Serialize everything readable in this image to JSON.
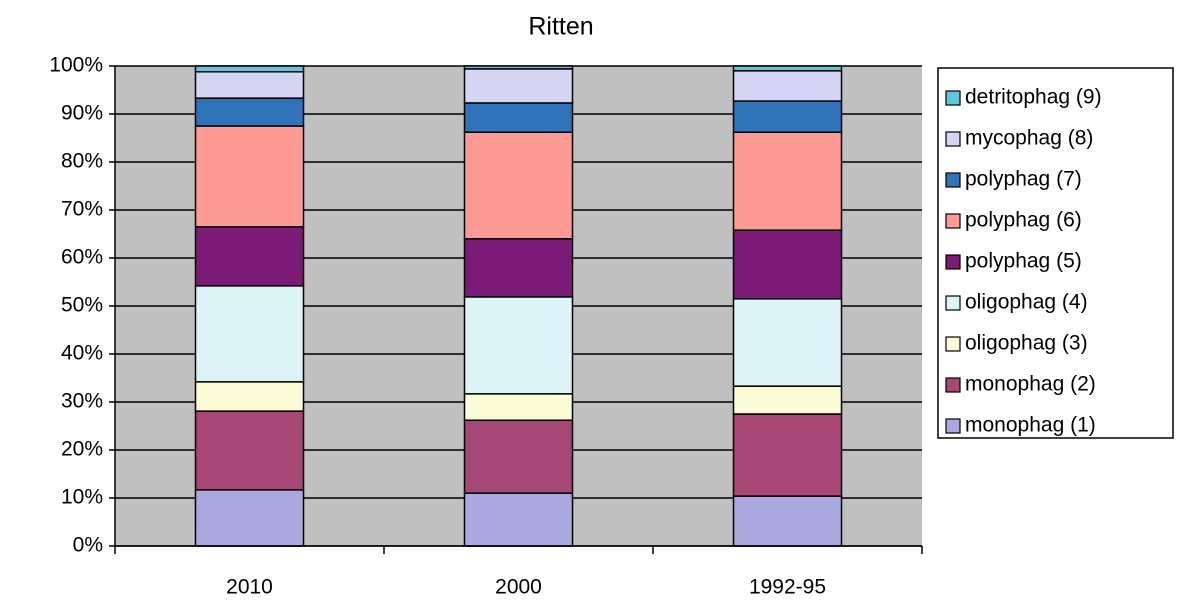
{
  "chart_data": {
    "type": "stacked_bar",
    "title": "Ritten",
    "categories": [
      "2010",
      "2000",
      "1992-95"
    ],
    "series": [
      {
        "name": "monophag (1)",
        "color": "#a9a9e0",
        "values": [
          11.7,
          11.0,
          10.4
        ]
      },
      {
        "name": "monophag (2)",
        "color": "#a64776",
        "values": [
          16.4,
          15.2,
          17.1
        ]
      },
      {
        "name": "oligophag (3)",
        "color": "#fbfbd6",
        "values": [
          6.1,
          5.5,
          5.8
        ]
      },
      {
        "name": "oligophag (4)",
        "color": "#dcf4f5",
        "values": [
          20.0,
          20.2,
          18.2
        ]
      },
      {
        "name": "polyphag (5)",
        "color": "#7b1a77",
        "values": [
          12.3,
          12.1,
          14.3
        ]
      },
      {
        "name": "polyphag (6)",
        "color": "#fd9a93",
        "values": [
          21.0,
          22.2,
          20.4
        ]
      },
      {
        "name": "polyphag (7)",
        "color": "#2f74b9",
        "values": [
          5.8,
          6.1,
          6.5
        ]
      },
      {
        "name": "mycophag (8)",
        "color": "#d4d4f3",
        "values": [
          5.5,
          7.1,
          6.3
        ]
      },
      {
        "name": "detritophag (9)",
        "color": "#5fc8d8",
        "values": [
          1.2,
          0.6,
          1.0
        ]
      }
    ],
    "ylim": [
      0,
      100
    ],
    "yticks": [
      {
        "value": 0,
        "label": "0%"
      },
      {
        "value": 10,
        "label": "10%"
      },
      {
        "value": 20,
        "label": "20%"
      },
      {
        "value": 30,
        "label": "30%"
      },
      {
        "value": 40,
        "label": "40%"
      },
      {
        "value": 50,
        "label": "50%"
      },
      {
        "value": 60,
        "label": "60%"
      },
      {
        "value": 70,
        "label": "70%"
      },
      {
        "value": 80,
        "label": "80%"
      },
      {
        "value": 90,
        "label": "90%"
      },
      {
        "value": 100,
        "label": "100%"
      }
    ],
    "grid": true,
    "plot_background": "#c0c0c0",
    "legend": "right"
  }
}
